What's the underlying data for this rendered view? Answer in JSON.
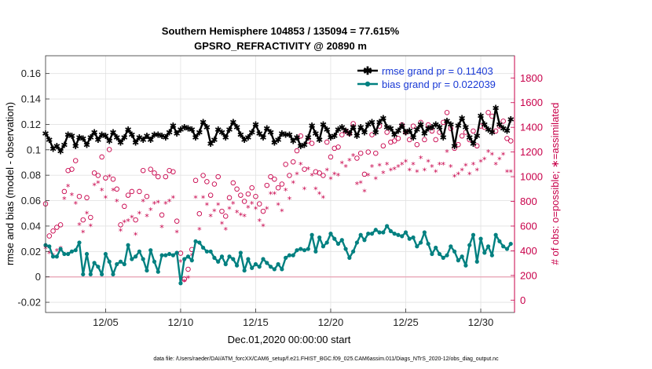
{
  "chart_data": {
    "type": "line",
    "title": "Southern Hemisphere 104853 / 135094 = 77.615%",
    "subtitle": "GPSRO_REFRACTIVITY @ 20890 m",
    "xlabel": "Dec.01,2020 00:00:00 start",
    "ylabel": "rmse and bias (model - observation)",
    "ylabel_right": "# of obs: o=possible; ∗=assimilated",
    "footnote": "data file: /Users/raeder/DAI/ATM_forcXX/CAM6_setup/f.e21.FHIST_BGC.f09_025.CAM6assim.011/Diags_NTrS_2020-12/obs_diag_output.nc",
    "xlim": [
      1,
      32.25
    ],
    "ylim": [
      -0.028,
      0.174
    ],
    "ylim_right": [
      -100,
      1980
    ],
    "x_ticks": [
      5,
      10,
      15,
      20,
      25,
      30
    ],
    "x_tick_labels": [
      "12/05",
      "12/10",
      "12/15",
      "12/20",
      "12/25",
      "12/30"
    ],
    "y_ticks": [
      -0.02,
      0,
      0.02,
      0.04,
      0.06,
      0.08,
      0.1,
      0.12,
      0.14,
      0.16
    ],
    "y_tick_labels": [
      "-0.02",
      "0",
      "0.02",
      "0.04",
      "0.06",
      "0.08",
      "0.1",
      "0.12",
      "0.14",
      "0.16"
    ],
    "y_right_ticks": [
      0,
      200,
      400,
      600,
      800,
      1000,
      1200,
      1400,
      1600,
      1800
    ],
    "y_right_tick_labels": [
      "0",
      "200",
      "400",
      "600",
      "800",
      "1000",
      "1200",
      "1400",
      "1600",
      "1800"
    ],
    "grid": true,
    "legend_position": "top-right",
    "zero_line": true,
    "series": [
      {
        "name": "rmse grand pr = 0.11403",
        "axis": "left",
        "marker": "star",
        "color": "#000000",
        "x": [
          1.0,
          1.25,
          1.5,
          1.75,
          2.0,
          2.25,
          2.5,
          2.75,
          3.0,
          3.25,
          3.5,
          3.75,
          4.0,
          4.25,
          4.5,
          4.75,
          5.0,
          5.25,
          5.5,
          5.75,
          6.0,
          6.25,
          6.5,
          6.75,
          7.0,
          7.25,
          7.5,
          7.75,
          8.0,
          8.25,
          8.5,
          8.75,
          9.0,
          9.25,
          9.5,
          9.75,
          10.0,
          10.25,
          10.5,
          10.75,
          11.0,
          11.25,
          11.5,
          11.75,
          12.0,
          12.25,
          12.5,
          12.75,
          13.0,
          13.25,
          13.5,
          13.75,
          14.0,
          14.25,
          14.5,
          14.75,
          15.0,
          15.25,
          15.5,
          15.75,
          16.0,
          16.25,
          16.5,
          16.75,
          17.0,
          17.25,
          17.5,
          17.75,
          18.0,
          18.25,
          18.5,
          18.75,
          19.0,
          19.25,
          19.5,
          19.75,
          20.0,
          20.25,
          20.5,
          20.75,
          21.0,
          21.25,
          21.5,
          21.75,
          22.0,
          22.25,
          22.5,
          22.75,
          23.0,
          23.25,
          23.5,
          23.75,
          24.0,
          24.25,
          24.5,
          24.75,
          25.0,
          25.25,
          25.5,
          25.75,
          26.0,
          26.25,
          26.5,
          26.75,
          27.0,
          27.25,
          27.5,
          27.75,
          28.0,
          28.25,
          28.5,
          28.75,
          29.0,
          29.25,
          29.5,
          29.75,
          30.0,
          30.25,
          30.5,
          30.75,
          31.0,
          31.25,
          31.5,
          31.75,
          32.0
        ],
        "values": [
          0.113,
          0.108,
          0.101,
          0.103,
          0.099,
          0.104,
          0.112,
          0.111,
          0.103,
          0.11,
          0.109,
          0.104,
          0.11,
          0.114,
          0.108,
          0.112,
          0.111,
          0.107,
          0.114,
          0.11,
          0.106,
          0.11,
          0.116,
          0.112,
          0.106,
          0.11,
          0.108,
          0.111,
          0.108,
          0.112,
          0.112,
          0.111,
          0.11,
          0.114,
          0.119,
          0.113,
          0.116,
          0.118,
          0.117,
          0.116,
          0.11,
          0.114,
          0.122,
          0.118,
          0.105,
          0.108,
          0.116,
          0.114,
          0.11,
          0.116,
          0.122,
          0.118,
          0.112,
          0.108,
          0.11,
          0.114,
          0.12,
          0.113,
          0.11,
          0.117,
          0.114,
          0.106,
          0.108,
          0.113,
          0.112,
          0.112,
          0.107,
          0.11,
          0.103,
          0.104,
          0.11,
          0.119,
          0.113,
          0.108,
          0.12,
          0.116,
          0.11,
          0.111,
          0.116,
          0.118,
          0.115,
          0.113,
          0.118,
          0.111,
          0.118,
          0.114,
          0.12,
          0.122,
          0.114,
          0.122,
          0.125,
          0.118,
          0.117,
          0.112,
          0.115,
          0.119,
          0.114,
          0.115,
          0.11,
          0.116,
          0.12,
          0.113,
          0.117,
          0.118,
          0.12,
          0.118,
          0.11,
          0.123,
          0.12,
          0.103,
          0.119,
          0.125,
          0.118,
          0.11,
          0.105,
          0.111,
          0.127,
          0.12,
          0.116,
          0.114,
          0.133,
          0.12,
          0.117,
          0.115,
          0.124
        ]
      },
      {
        "name": "bias grand pr = 0.022039",
        "axis": "left",
        "marker": "circle-filled",
        "color": "#008080",
        "x": [
          1.0,
          1.25,
          1.5,
          1.75,
          2.0,
          2.25,
          2.5,
          2.75,
          3.0,
          3.25,
          3.5,
          3.75,
          4.0,
          4.25,
          4.5,
          4.75,
          5.0,
          5.25,
          5.5,
          5.75,
          6.0,
          6.25,
          6.5,
          6.75,
          7.0,
          7.25,
          7.5,
          7.75,
          8.0,
          8.25,
          8.5,
          8.75,
          9.0,
          9.25,
          9.5,
          9.75,
          10.0,
          10.25,
          10.5,
          10.75,
          11.0,
          11.25,
          11.5,
          11.75,
          12.0,
          12.25,
          12.5,
          12.75,
          13.0,
          13.25,
          13.5,
          13.75,
          14.0,
          14.25,
          14.5,
          14.75,
          15.0,
          15.25,
          15.5,
          15.75,
          16.0,
          16.25,
          16.5,
          16.75,
          17.0,
          17.25,
          17.5,
          17.75,
          18.0,
          18.25,
          18.5,
          18.75,
          19.0,
          19.25,
          19.5,
          19.75,
          20.0,
          20.25,
          20.5,
          20.75,
          21.0,
          21.25,
          21.5,
          21.75,
          22.0,
          22.25,
          22.5,
          22.75,
          23.0,
          23.25,
          23.5,
          23.75,
          24.0,
          24.25,
          24.5,
          24.75,
          25.0,
          25.25,
          25.5,
          25.75,
          26.0,
          26.25,
          26.5,
          26.75,
          27.0,
          27.25,
          27.5,
          27.75,
          28.0,
          28.25,
          28.5,
          28.75,
          29.0,
          29.25,
          29.5,
          29.75,
          30.0,
          30.25,
          30.5,
          30.75,
          31.0,
          31.25,
          31.5,
          31.75,
          32.0
        ],
        "values": [
          0.025,
          0.024,
          0.016,
          0.016,
          0.022,
          0.018,
          0.018,
          0.02,
          0.021,
          0.027,
          0.002,
          0.018,
          0.002,
          0.011,
          0.008,
          0.002,
          0.018,
          0.012,
          0.002,
          0.01,
          0.012,
          0.01,
          0.025,
          0.014,
          0.016,
          0.02,
          0.014,
          0.005,
          0.021,
          0.012,
          0.004,
          0.017,
          0.017,
          0.018,
          0.017,
          0.019,
          -0.005,
          0.014,
          0.016,
          0.013,
          0.028,
          0.027,
          0.023,
          0.02,
          0.02,
          0.015,
          0.012,
          0.016,
          0.01,
          0.016,
          0.014,
          0.009,
          0.019,
          0.005,
          0.014,
          0.007,
          0.01,
          0.008,
          0.014,
          0.011,
          0.008,
          0.006,
          0.01,
          0.006,
          0.015,
          0.017,
          0.017,
          0.021,
          0.022,
          0.021,
          0.022,
          0.033,
          0.02,
          0.031,
          0.024,
          0.027,
          0.034,
          0.03,
          0.026,
          0.029,
          0.022,
          0.015,
          0.02,
          0.027,
          0.033,
          0.029,
          0.034,
          0.034,
          0.037,
          0.035,
          0.035,
          0.04,
          0.036,
          0.034,
          0.033,
          0.032,
          0.035,
          0.03,
          0.031,
          0.024,
          0.027,
          0.035,
          0.026,
          0.018,
          0.023,
          0.018,
          0.015,
          0.017,
          0.024,
          0.02,
          0.013,
          0.016,
          0.009,
          0.025,
          0.033,
          0.012,
          0.03,
          0.019,
          0.024,
          0.017,
          0.033,
          0.028,
          0.024,
          0.022,
          0.026
        ]
      },
      {
        "name": "",
        "axis": "right",
        "marker": "circle-open",
        "color": "#c8004a",
        "x": [
          1.0,
          1.25,
          1.5,
          1.75,
          2.0,
          2.25,
          2.5,
          2.75,
          3.0,
          3.25,
          3.5,
          3.75,
          4.0,
          4.25,
          4.5,
          4.75,
          5.0,
          5.25,
          5.5,
          5.75,
          6.0,
          6.25,
          6.5,
          6.75,
          7.0,
          7.25,
          7.5,
          7.75,
          8.0,
          8.25,
          8.5,
          8.75,
          9.0,
          9.25,
          9.5,
          9.75,
          10.0,
          10.25,
          10.5,
          10.75,
          11.0,
          11.25,
          11.5,
          11.75,
          12.0,
          12.25,
          12.5,
          12.75,
          13.0,
          13.25,
          13.5,
          13.75,
          14.0,
          14.25,
          14.5,
          14.75,
          15.0,
          15.25,
          15.5,
          15.75,
          16.0,
          16.25,
          16.5,
          16.75,
          17.0,
          17.25,
          17.5,
          17.75,
          18.0,
          18.25,
          18.5,
          18.75,
          19.0,
          19.25,
          19.5,
          19.75,
          20.0,
          20.25,
          20.5,
          20.75,
          21.0,
          21.25,
          21.5,
          21.75,
          22.0,
          22.25,
          22.5,
          22.75,
          23.0,
          23.25,
          23.5,
          23.75,
          24.0,
          24.25,
          24.5,
          24.75,
          25.0,
          25.25,
          25.5,
          25.75,
          26.0,
          26.25,
          26.5,
          26.75,
          27.0,
          27.25,
          27.5,
          27.75,
          28.0,
          28.25,
          28.5,
          28.75,
          29.0,
          29.25,
          29.5,
          29.75,
          30.0,
          30.25,
          30.5,
          30.75,
          31.0,
          31.25,
          31.5,
          31.75,
          32.0
        ],
        "values": [
          780,
          520,
          560,
          590,
          610,
          880,
          1050,
          1060,
          1130,
          840,
          650,
          830,
          670,
          1030,
          1010,
          1160,
          990,
          1220,
          980,
          900,
          610,
          760,
          850,
          880,
          650,
          880,
          1050,
          840,
          1060,
          1030,
          1000,
          690,
          1000,
          1050,
          1040,
          640,
          380,
          170,
          250,
          410,
          970,
          700,
          1010,
          960,
          850,
          940,
          1000,
          720,
          680,
          830,
          950,
          900,
          850,
          800,
          860,
          910,
          840,
          780,
          720,
          930,
          1000,
          980,
          910,
          940,
          1100,
          1010,
          1120,
          1210,
          1330,
          1060,
          1290,
          1270,
          1040,
          1030,
          1010,
          1280,
          1160,
          1230,
          1240,
          1340,
          1370,
          1350,
          1430,
          1150,
          1190,
          1020,
          1200,
          1340,
          1190,
          1410,
          1250,
          1360,
          1280,
          1290,
          1310,
          1420,
          1360,
          1300,
          1410,
          1260,
          1440,
          1300,
          1420,
          1370,
          1300,
          1360,
          1440,
          1520,
          1390,
          1230,
          1260,
          1330,
          1360,
          1300,
          1370,
          1250,
          1410,
          1400,
          1520,
          1490,
          1370,
          1410,
          1450,
          1310,
          1290
        ]
      },
      {
        "name": "",
        "axis": "right",
        "marker": "asterisk",
        "color": "#c8004a",
        "x": [
          1.0,
          1.25,
          1.5,
          1.75,
          2.0,
          2.25,
          2.5,
          2.75,
          3.0,
          3.25,
          3.5,
          3.75,
          4.0,
          4.25,
          4.5,
          4.75,
          5.0,
          5.25,
          5.5,
          5.75,
          6.0,
          6.25,
          6.5,
          6.75,
          7.0,
          7.25,
          7.5,
          7.75,
          8.0,
          8.25,
          8.5,
          8.75,
          9.0,
          9.25,
          9.5,
          9.75,
          10.0,
          10.25,
          10.5,
          10.75,
          11.0,
          11.25,
          11.5,
          11.75,
          12.0,
          12.25,
          12.5,
          12.75,
          13.0,
          13.25,
          13.5,
          13.75,
          14.0,
          14.25,
          14.5,
          14.75,
          15.0,
          15.25,
          15.5,
          15.75,
          16.0,
          16.25,
          16.5,
          16.75,
          17.0,
          17.25,
          17.5,
          17.75,
          18.0,
          18.25,
          18.5,
          18.75,
          19.0,
          19.25,
          19.5,
          19.75,
          20.0,
          20.25,
          20.5,
          20.75,
          21.0,
          21.25,
          21.5,
          21.75,
          22.0,
          22.25,
          22.5,
          22.75,
          23.0,
          23.25,
          23.5,
          23.75,
          24.0,
          24.25,
          24.5,
          24.75,
          25.0,
          25.25,
          25.5,
          25.75,
          26.0,
          26.25,
          26.5,
          26.75,
          27.0,
          27.25,
          27.5,
          27.75,
          28.0,
          28.25,
          28.5,
          28.75,
          29.0,
          29.25,
          29.5,
          29.75,
          30.0,
          30.25,
          30.5,
          30.75,
          31.0,
          31.25,
          31.5,
          31.75,
          32.0
        ],
        "values": [
          420,
          380,
          360,
          400,
          420,
          820,
          920,
          850,
          780,
          610,
          550,
          700,
          600,
          930,
          950,
          890,
          830,
          1000,
          890,
          800,
          560,
          630,
          640,
          670,
          530,
          700,
          800,
          680,
          730,
          780,
          790,
          590,
          780,
          800,
          830,
          550,
          310,
          150,
          180,
          360,
          830,
          570,
          830,
          770,
          680,
          720,
          770,
          620,
          570,
          740,
          780,
          710,
          690,
          680,
          750,
          780,
          740,
          640,
          600,
          740,
          860,
          860,
          770,
          720,
          890,
          820,
          950,
          1020,
          1100,
          900,
          1060,
          1010,
          900,
          860,
          830,
          1050,
          980,
          1020,
          1010,
          1110,
          1080,
          1130,
          1170,
          940,
          950,
          880,
          1010,
          1080,
          980,
          1090,
          1030,
          1100,
          1050,
          1060,
          1080,
          1100,
          1120,
          1050,
          1100,
          1040,
          1150,
          1050,
          1120,
          1080,
          1040,
          1100,
          1100,
          1200,
          1080,
          1000,
          1020,
          1050,
          1090,
          1020,
          1100,
          1050,
          1120,
          1140,
          1200,
          1180,
          1100,
          1140,
          1180,
          1040,
          1040
        ]
      }
    ]
  }
}
